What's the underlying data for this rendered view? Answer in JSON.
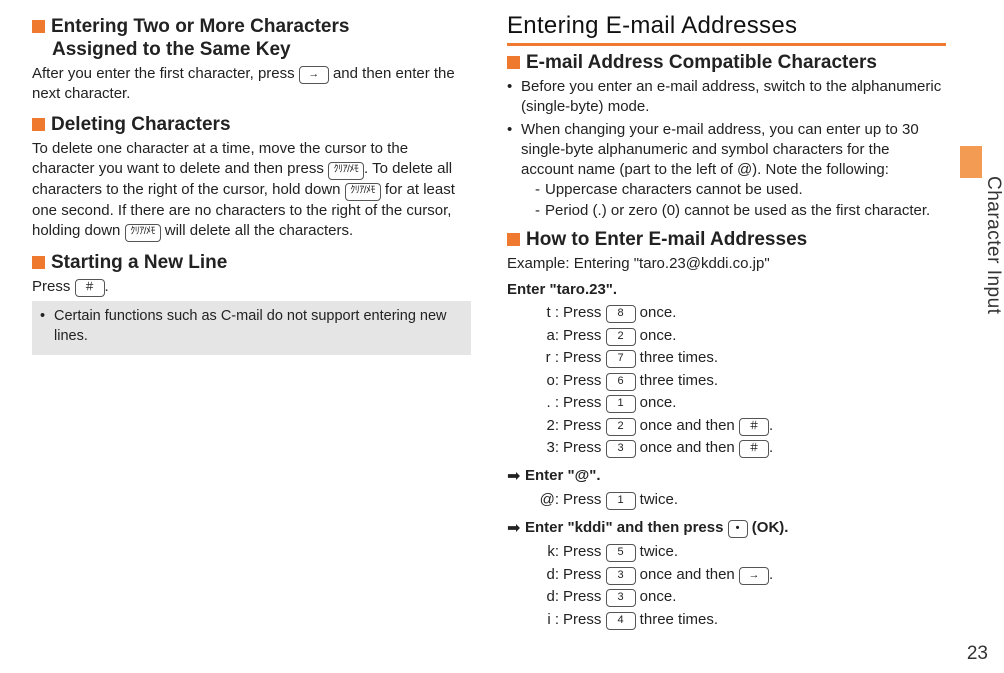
{
  "colors": {
    "accent": "#ef792f",
    "tab": "#f39a53",
    "noteBg": "#e5e5e5",
    "text": "#222"
  },
  "sideTab": "Character Input",
  "pageNumber": "23",
  "left": {
    "sec1": {
      "title_l1": "Entering Two or More Characters",
      "title_l2": "Assigned to the Same Key",
      "body_a": "After you enter the first character, press ",
      "key": "→",
      "body_b": " and then enter the next character."
    },
    "sec2": {
      "title": "Deleting Characters",
      "body_a": "To delete one character at a time, move the cursor to the character you want to delete and then press ",
      "key1": "ｸﾘｱ/ﾒﾓ",
      "body_b": ". To delete all characters to the right of the cursor, hold down ",
      "key2": "ｸﾘｱ/ﾒﾓ",
      "body_c": " for at least one second. If there are no characters to the right of the cursor, holding down ",
      "key3": "ｸﾘｱ/ﾒﾓ",
      "body_d": " will delete all the characters."
    },
    "sec3": {
      "title": "Starting a New Line",
      "body_a": "Press ",
      "key": "＃",
      "body_b": ".",
      "note": "Certain functions such as C-mail do not support entering new lines."
    }
  },
  "right": {
    "mainTitle": "Entering E-mail Addresses",
    "sec1": {
      "title": "E-mail Address Compatible Characters",
      "li1": "Before you enter an e-mail address, switch to the alphanumeric (single-byte) mode.",
      "li2": "When changing your e-mail address, you can enter up to 30 single-byte alphanumeric and symbol characters for the account name (part to the left of @). Note the following:",
      "d1": "Uppercase characters cannot be used.",
      "d2": "Period (.) or zero (0) cannot be used as the first character."
    },
    "sec2": {
      "title": "How to Enter E-mail Addresses",
      "example": "Example: Entering \"taro.23@kddi.co.jp\"",
      "step1": "Enter \"taro.23\".",
      "rows1": [
        {
          "k": "t :",
          "a": "Press ",
          "key": "8",
          "b": " once."
        },
        {
          "k": "a:",
          "a": "Press ",
          "key": "2",
          "b": " once."
        },
        {
          "k": "r :",
          "a": "Press ",
          "key": "7",
          "b": " three times."
        },
        {
          "k": "o:",
          "a": "Press ",
          "key": "6",
          "b": " three times."
        },
        {
          "k": ". :",
          "a": "Press ",
          "key": "1",
          "b": " once."
        },
        {
          "k": "2:",
          "a": "Press ",
          "key": "2",
          "b": " once and then ",
          "key2": "＃",
          "c": "."
        },
        {
          "k": "3:",
          "a": "Press ",
          "key": "3",
          "b": " once and then ",
          "key2": "＃",
          "c": "."
        }
      ],
      "step2": "Enter \"@\".",
      "rows2": [
        {
          "k": "@:",
          "a": "Press ",
          "key": "1",
          "b": " twice."
        }
      ],
      "step3a": "Enter \"kddi\" and then press ",
      "step3key": "•",
      "step3b": " (OK).",
      "rows3": [
        {
          "k": "k:",
          "a": "Press ",
          "key": "5",
          "b": " twice."
        },
        {
          "k": "d:",
          "a": "Press ",
          "key": "3",
          "b": " once and then ",
          "key2": "→",
          "c": "."
        },
        {
          "k": "d:",
          "a": "Press ",
          "key": "3",
          "b": " once."
        },
        {
          "k": "i :",
          "a": "Press ",
          "key": "4",
          "b": " three times."
        }
      ]
    }
  }
}
